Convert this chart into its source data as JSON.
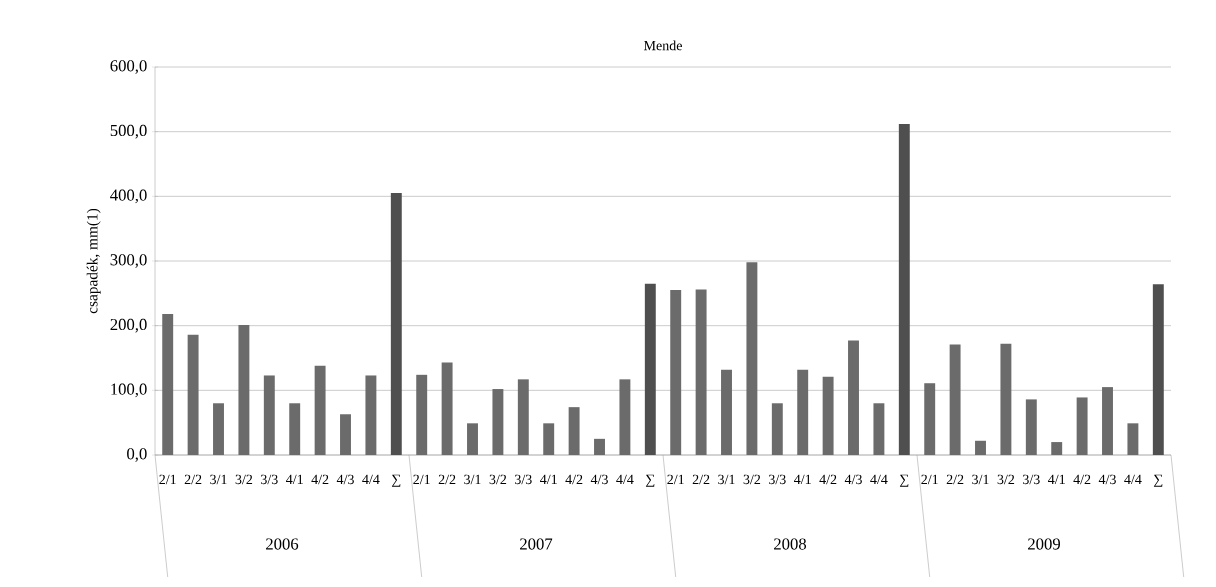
{
  "chart_data": {
    "type": "bar",
    "title": "Mende",
    "ylabel": "csapadék, mm(1)",
    "categories": [
      "2/1",
      "2/2",
      "3/1",
      "3/2",
      "3/3",
      "4/1",
      "4/2",
      "4/3",
      "4/4",
      "∑",
      "2/1",
      "2/2",
      "3/1",
      "3/2",
      "3/3",
      "4/1",
      "4/2",
      "4/3",
      "4/4",
      "∑",
      "2/1",
      "2/2",
      "3/1",
      "3/2",
      "3/3",
      "4/1",
      "4/2",
      "4/3",
      "4/4",
      "∑",
      "2/1",
      "2/2",
      "3/1",
      "3/2",
      "3/3",
      "4/1",
      "4/2",
      "4/3",
      "4/4",
      "∑"
    ],
    "values": [
      218,
      186,
      80,
      201,
      123,
      80,
      138,
      63,
      123,
      405,
      124,
      143,
      49,
      102,
      117,
      49,
      74,
      25,
      117,
      265,
      255,
      256,
      132,
      298,
      80,
      132,
      121,
      177,
      80,
      512,
      111,
      171,
      22,
      172,
      86,
      20,
      89,
      105,
      49,
      264
    ],
    "colors": [
      "#6b6b6b",
      "#6b6b6b",
      "#6b6b6b",
      "#6b6b6b",
      "#6b6b6b",
      "#6b6b6b",
      "#6b6b6b",
      "#6b6b6b",
      "#6b6b6b",
      "#4f4f4f",
      "#6b6b6b",
      "#6b6b6b",
      "#6b6b6b",
      "#6b6b6b",
      "#6b6b6b",
      "#6b6b6b",
      "#6b6b6b",
      "#6b6b6b",
      "#6b6b6b",
      "#4f4f4f",
      "#6b6b6b",
      "#6b6b6b",
      "#6b6b6b",
      "#6b6b6b",
      "#6b6b6b",
      "#6b6b6b",
      "#6b6b6b",
      "#6b6b6b",
      "#6b6b6b",
      "#4f4f4f",
      "#6b6b6b",
      "#6b6b6b",
      "#6b6b6b",
      "#6b6b6b",
      "#6b6b6b",
      "#6b6b6b",
      "#6b6b6b",
      "#6b6b6b",
      "#6b6b6b",
      "#4f4f4f"
    ],
    "annotations": [
      "2006",
      "2007",
      "2008",
      "2009"
    ],
    "ylim": [
      0,
      600
    ],
    "yticks": [
      {
        "value": 0,
        "label": "0,0"
      },
      {
        "value": 100,
        "label": "100,0"
      },
      {
        "value": 200,
        "label": "200,0"
      },
      {
        "value": 300,
        "label": "300,0"
      },
      {
        "value": 400,
        "label": "400,0"
      },
      {
        "value": 500,
        "label": "500,0"
      },
      {
        "value": 600,
        "label": "600,0"
      }
    ],
    "grid": "y"
  }
}
